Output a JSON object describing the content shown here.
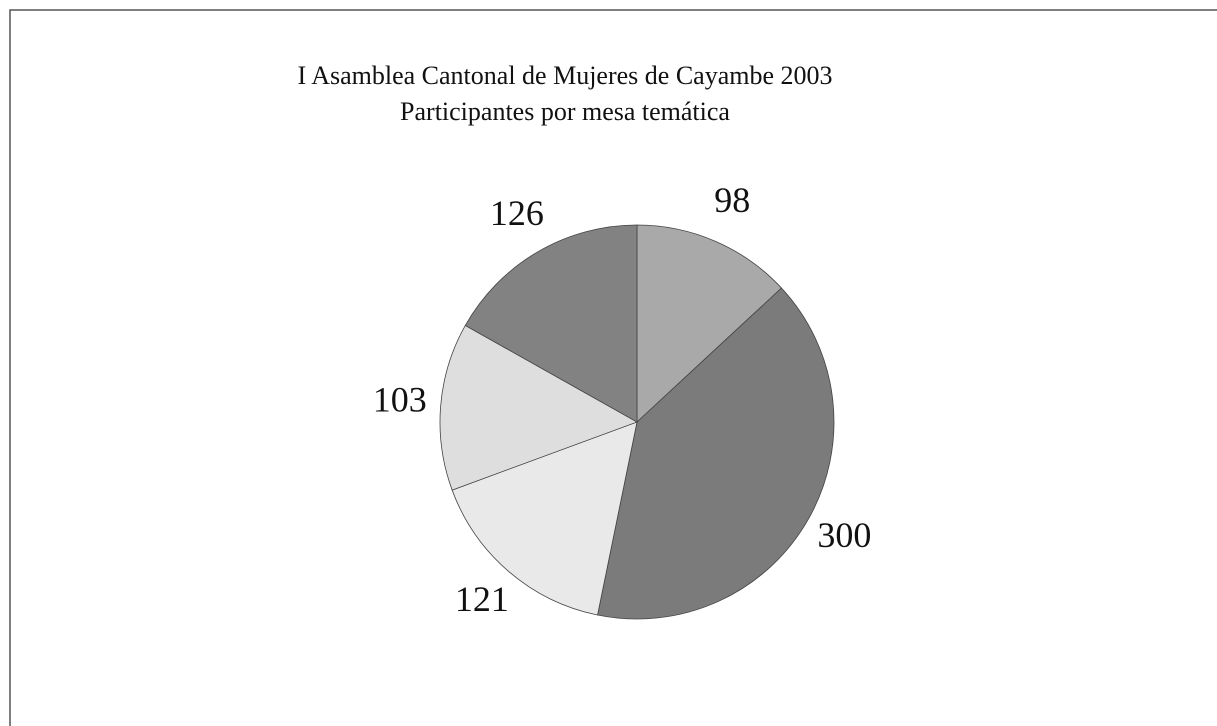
{
  "chart_data": {
    "type": "pie",
    "title": "I Asamblea Cantonal de Mujeres de Cayambe 2003",
    "subtitle": "Participantes por mesa temática",
    "values": [
      98,
      300,
      121,
      103,
      126
    ],
    "colors": [
      "#a9a9a9",
      "#7b7b7b",
      "#e9e9e9",
      "#dedede",
      "#828282"
    ]
  }
}
